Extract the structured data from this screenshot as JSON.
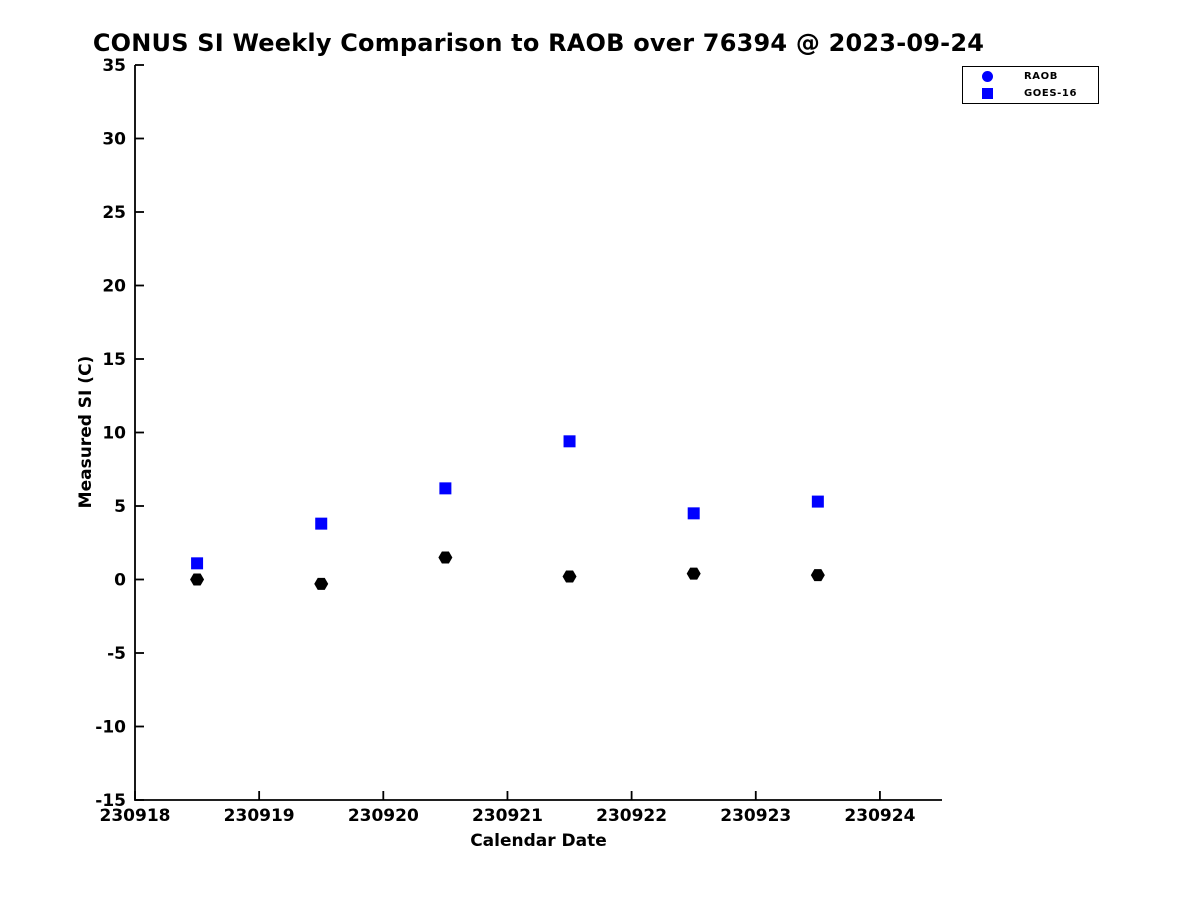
{
  "chart_data": {
    "type": "scatter",
    "title": "CONUS SI Weekly Comparison to RAOB over 76394 @ 2023-09-24",
    "xlabel": "Calendar Date",
    "ylabel": "Measured SI (C)",
    "xlim": [
      230918,
      230924.5
    ],
    "ylim": [
      -15,
      35
    ],
    "xticks": [
      230918,
      230919,
      230920,
      230921,
      230922,
      230923,
      230924
    ],
    "yticks": [
      -15,
      -10,
      -5,
      0,
      5,
      10,
      15,
      20,
      25,
      30,
      35
    ],
    "grid": false,
    "legend_position": "outside-top-right",
    "x": [
      230918.5,
      230919.5,
      230920.5,
      230921.5,
      230922.5,
      230923.5
    ],
    "series": [
      {
        "name": "RAOB",
        "marker": "hexagon",
        "color": "#000000",
        "legend_marker_color": "#0000ff",
        "values": [
          0.0,
          -0.3,
          1.5,
          0.2,
          0.4,
          0.3
        ]
      },
      {
        "name": "GOES-16",
        "marker": "square",
        "color": "#0000ff",
        "legend_marker_color": "#0000ff",
        "values": [
          1.1,
          3.8,
          6.2,
          9.4,
          4.5,
          5.3
        ]
      }
    ]
  },
  "colors": {
    "background": "#ffffff",
    "axis": "#000000",
    "accent_blue": "#0000ff"
  }
}
